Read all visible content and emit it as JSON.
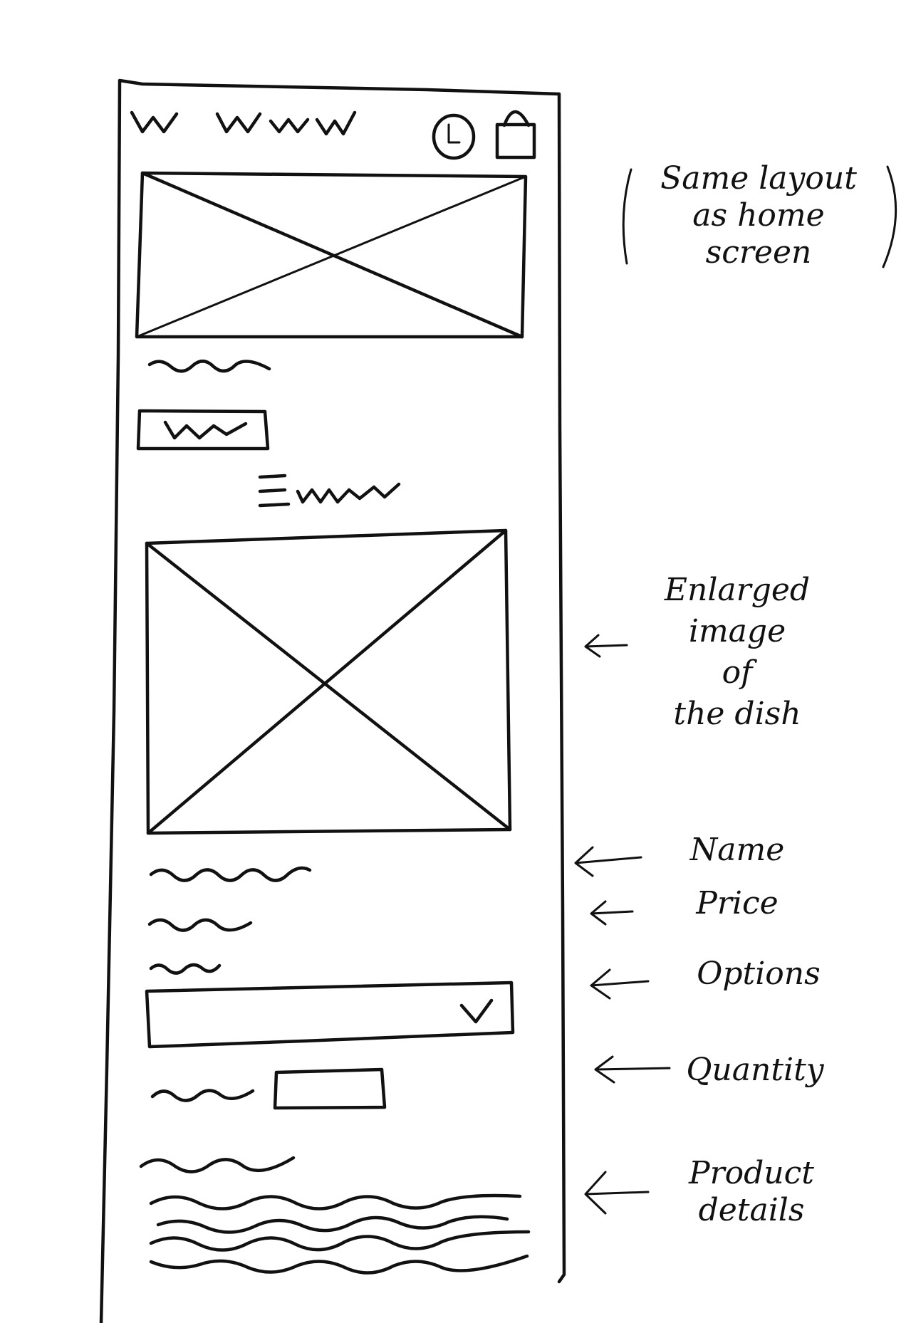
{
  "annotations": {
    "layout_note": "Same layout\nas home\nscreen",
    "image_note": "Enlarged\nimage\nof\nthe dish",
    "name_note": "Name",
    "price_note": "Price",
    "options_note": "Options",
    "quantity_note": "Quantity",
    "details_note": "Product\ndetails"
  },
  "icons": {
    "header_right": [
      "clock-icon",
      "shopping-bag-icon"
    ],
    "menu": "hamburger-menu-icon",
    "dropdown": "checkmark-chevron-icon",
    "arrows": "left-arrow-icon"
  }
}
